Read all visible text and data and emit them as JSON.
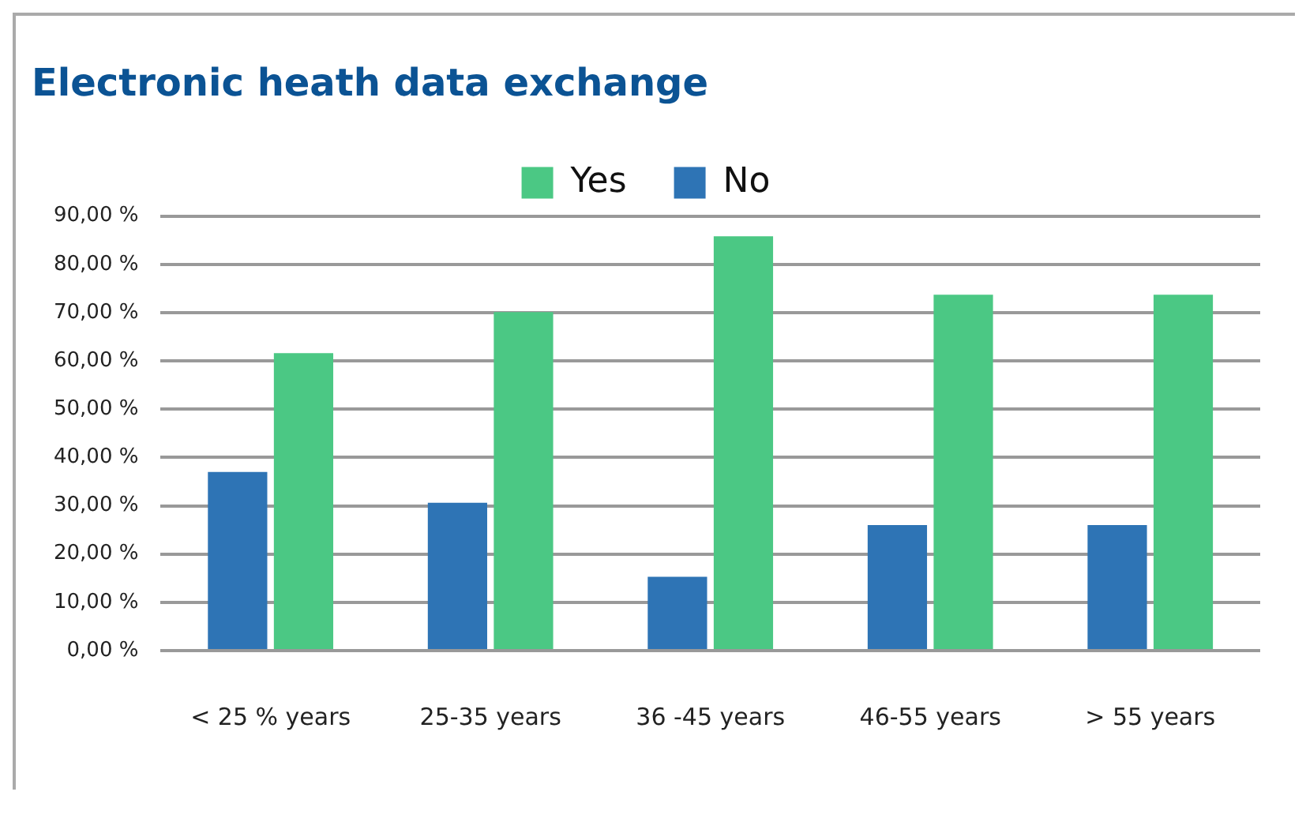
{
  "chart_data": {
    "type": "bar",
    "title": "Electronic heath data exchange",
    "categories": [
      "< 25 % years",
      "25-35 years",
      "36 -45 years",
      "46-55 years",
      "> 55 years"
    ],
    "series": [
      {
        "name": "No",
        "color": "#2e74b5",
        "values": [
          37.0,
          30.6,
          15.3,
          26.0,
          26.0
        ]
      },
      {
        "name": "Yes",
        "color": "#4bc884",
        "values": [
          61.6,
          70.1,
          85.8,
          73.7,
          73.7
        ]
      }
    ],
    "ylim": [
      0,
      90
    ],
    "yticks": [
      {
        "value": 0,
        "label": "0,00 %"
      },
      {
        "value": 10,
        "label": "10,00 %"
      },
      {
        "value": 20,
        "label": "20,00 %"
      },
      {
        "value": 30,
        "label": "30,00 %"
      },
      {
        "value": 40,
        "label": "40,00 %"
      },
      {
        "value": 50,
        "label": "50,00 %"
      },
      {
        "value": 60,
        "label": "60,00 %"
      },
      {
        "value": 70,
        "label": "70,00 %"
      },
      {
        "value": 80,
        "label": "80,00 %"
      },
      {
        "value": 90,
        "label": "90,00 %"
      }
    ],
    "grid": "y",
    "legend": "top"
  }
}
